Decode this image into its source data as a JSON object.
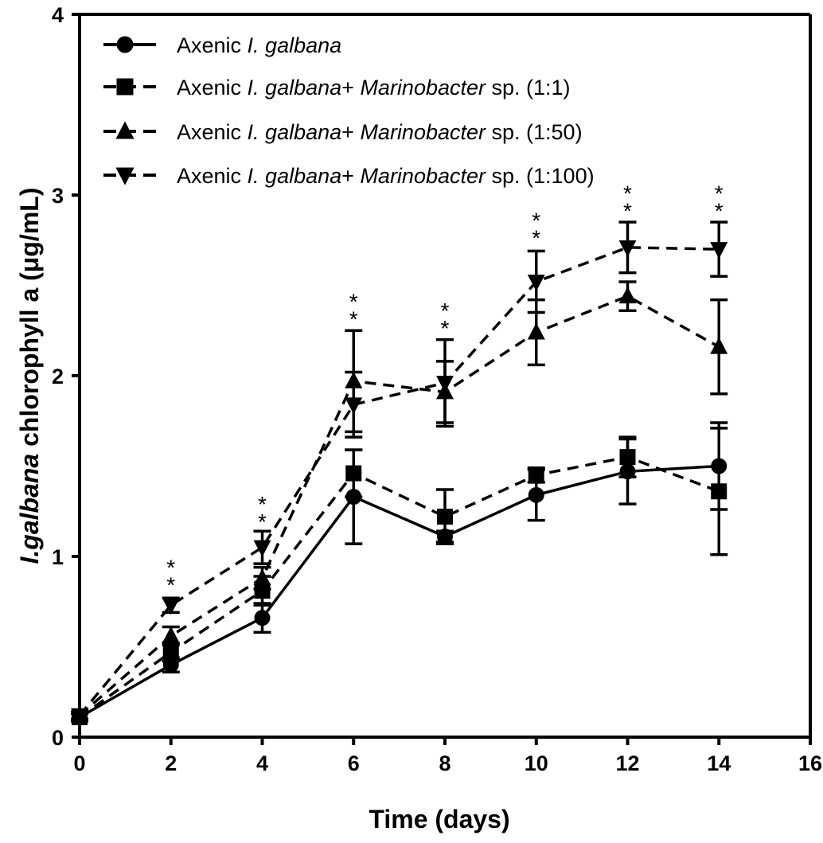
{
  "chart_data": {
    "type": "line",
    "title": "",
    "xlabel": "Time (days)",
    "ylabel": {
      "italic": "I.galbana",
      "rest": " chlorophyll a (μg/mL)"
    },
    "xlim": [
      0,
      16
    ],
    "ylim": [
      0,
      4
    ],
    "xticks": [
      "0",
      "2",
      "4",
      "6",
      "8",
      "10",
      "12",
      "14",
      "16"
    ],
    "yticks": [
      "0",
      "1",
      "2",
      "3",
      "4"
    ],
    "grid": false,
    "legend_position": "top-left",
    "x": [
      0,
      2,
      4,
      6,
      8,
      10,
      12,
      14
    ],
    "series": [
      {
        "name": "Axenic I. galbana",
        "legend_parts": [
          {
            "text": "Axenic ",
            "italic": false
          },
          {
            "text": "I. galbana",
            "italic": true
          }
        ],
        "marker": "circle",
        "dashed": false,
        "values": [
          0.11,
          0.4,
          0.66,
          1.33,
          1.11,
          1.34,
          1.47,
          1.5
        ],
        "errors": [
          0.02,
          0.04,
          0.08,
          0.26,
          0.03,
          0.14,
          0.18,
          0.24
        ]
      },
      {
        "name": "Axenic I. galbana+ Marinobacter sp. (1:1)",
        "legend_parts": [
          {
            "text": "Axenic ",
            "italic": false
          },
          {
            "text": "I. galbana",
            "italic": true
          },
          {
            "text": "+ ",
            "italic": false
          },
          {
            "text": "Marinobacter",
            "italic": true
          },
          {
            "text": " sp. (1:1)",
            "italic": false
          }
        ],
        "marker": "square",
        "dashed": true,
        "values": [
          0.11,
          0.47,
          0.81,
          1.46,
          1.22,
          1.45,
          1.55,
          1.36
        ],
        "errors": [
          0.02,
          0.05,
          0.08,
          0.13,
          0.15,
          0.04,
          0.11,
          0.35
        ]
      },
      {
        "name": "Axenic I. galbana+ Marinobacter sp. (1:50)",
        "legend_parts": [
          {
            "text": "Axenic ",
            "italic": false
          },
          {
            "text": "I. galbana",
            "italic": true
          },
          {
            "text": "+ ",
            "italic": false
          },
          {
            "text": "Marinobacter",
            "italic": true
          },
          {
            "text": " sp. (1:50)",
            "italic": false
          }
        ],
        "marker": "triangle-up",
        "dashed": true,
        "values": [
          0.12,
          0.56,
          0.88,
          1.97,
          1.91,
          2.24,
          2.44,
          2.16
        ],
        "errors": [
          0.02,
          0.05,
          0.06,
          0.28,
          0.17,
          0.18,
          0.08,
          0.26
        ]
      },
      {
        "name": "Axenic I. galbana+ Marinobacter sp. (1:100)",
        "legend_parts": [
          {
            "text": "Axenic ",
            "italic": false
          },
          {
            "text": "I. galbana",
            "italic": true
          },
          {
            "text": "+ ",
            "italic": false
          },
          {
            "text": "Marinobacter",
            "italic": true
          },
          {
            "text": " sp. (1:100)",
            "italic": false
          }
        ],
        "marker": "triangle-down",
        "dashed": true,
        "values": [
          0.12,
          0.73,
          1.05,
          1.84,
          1.96,
          2.52,
          2.71,
          2.7
        ],
        "errors": [
          0.02,
          0.04,
          0.09,
          0.18,
          0.24,
          0.17,
          0.14,
          0.15
        ]
      }
    ],
    "significance_markers": [
      {
        "x": 2,
        "y": 0.8,
        "label": "*\n*"
      },
      {
        "x": 4,
        "y": 1.15,
        "label": "*\n*"
      },
      {
        "x": 6,
        "y": 2.27,
        "label": "*\n*"
      },
      {
        "x": 8,
        "y": 2.22,
        "label": "*\n*"
      },
      {
        "x": 10,
        "y": 2.72,
        "label": "*\n*"
      },
      {
        "x": 12,
        "y": 2.87,
        "label": "*\n*"
      },
      {
        "x": 14,
        "y": 2.87,
        "label": "*\n*"
      }
    ]
  }
}
